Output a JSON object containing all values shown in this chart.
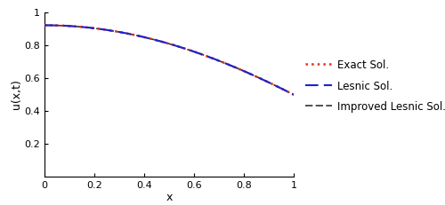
{
  "title": "",
  "xlabel": "x",
  "ylabel": "u(x,t)",
  "xlim": [
    0.0,
    1.0
  ],
  "ylim": [
    0.0,
    1.0
  ],
  "x_ticks": [
    0.0,
    0.2,
    0.4,
    0.6,
    0.8,
    1.0
  ],
  "y_ticks": [
    0.2,
    0.4,
    0.6,
    0.8,
    1.0
  ],
  "exact_color": "#e8301a",
  "lesnic_color": "#2222cc",
  "improved_color": "#333333",
  "legend_entries": [
    "Exact Sol.",
    "Lesnic Sol.",
    "Improved Lesnic Sol."
  ],
  "background_color": "#ffffff",
  "fig_width": 5.0,
  "fig_height": 2.31,
  "scale": 0.9211
}
